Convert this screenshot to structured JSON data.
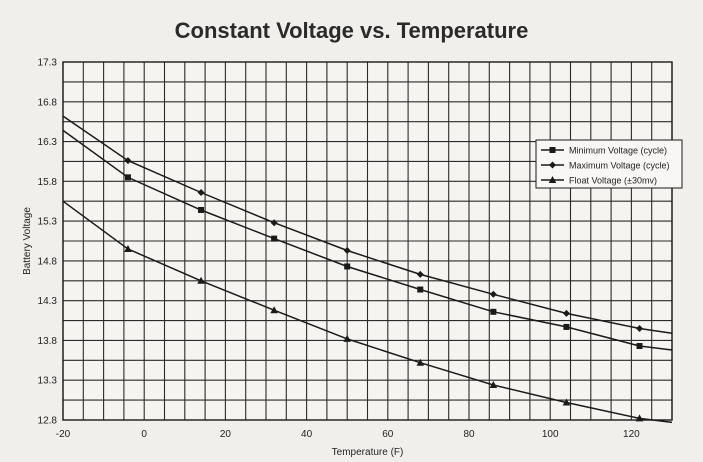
{
  "chart_data": {
    "type": "line",
    "title": "Constant Voltage vs. Temperature",
    "xlabel": "Temperature (F)",
    "ylabel": "Battery Voltage",
    "xlim": [
      -20,
      130
    ],
    "ylim": [
      12.8,
      17.3
    ],
    "xticks": [
      -20,
      0,
      20,
      40,
      60,
      80,
      100,
      120
    ],
    "yticks": [
      12.8,
      13.3,
      13.8,
      14.3,
      14.8,
      15.3,
      15.8,
      16.3,
      16.8,
      17.3
    ],
    "grid": true,
    "legend_position": "right",
    "series": [
      {
        "name": "Minimum Voltage (cycle)",
        "marker": "square",
        "x": [
          -20,
          -4,
          14,
          32,
          50,
          68,
          86,
          104,
          122,
          130
        ],
        "y": [
          16.44,
          15.85,
          15.44,
          15.08,
          14.73,
          14.44,
          14.16,
          13.97,
          13.73,
          13.68
        ]
      },
      {
        "name": "Maximum Voltage (cycle)",
        "marker": "diamond",
        "x": [
          -20,
          -4,
          14,
          32,
          50,
          68,
          86,
          104,
          122,
          130
        ],
        "y": [
          16.62,
          16.06,
          15.66,
          15.28,
          14.93,
          14.63,
          14.38,
          14.14,
          13.95,
          13.89
        ]
      },
      {
        "name": "Float Voltage (±30mv)",
        "marker": "triangle",
        "x": [
          -20,
          -4,
          14,
          32,
          50,
          68,
          86,
          104,
          122,
          130
        ],
        "y": [
          15.55,
          14.95,
          14.55,
          14.18,
          13.82,
          13.52,
          13.24,
          13.02,
          12.82,
          12.77
        ]
      }
    ]
  }
}
